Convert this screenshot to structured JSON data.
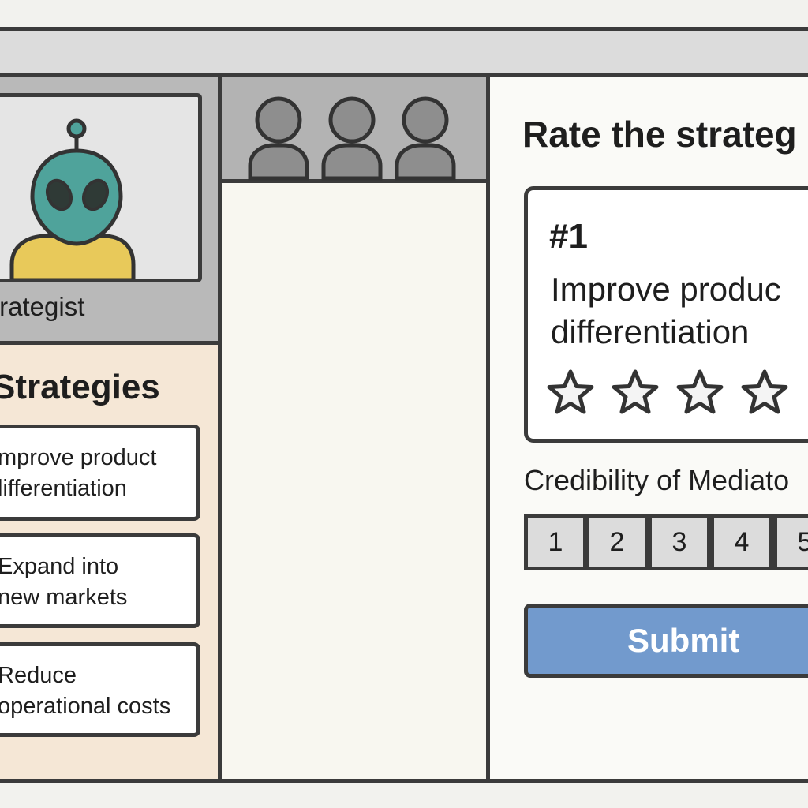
{
  "speaker": {
    "name": "trategist",
    "avatar": "alien-avatar"
  },
  "strategies_panel": {
    "title": "Strategies",
    "items": [
      {
        "line1": "mprove product",
        "line2": "lifferentiation"
      },
      {
        "line1": "Expand into",
        "line2": "new markets"
      },
      {
        "line1": "Reduce",
        "line2": "operational costs"
      }
    ]
  },
  "participants": {
    "icons": [
      "person-icon",
      "person-icon",
      "person-icon"
    ]
  },
  "rating_panel": {
    "title": "Rate the strateg",
    "card": {
      "number": "#1",
      "line1": "Improve produc",
      "line2": "differentiation",
      "star_icon": "star-outline-icon",
      "stars_filled": 0
    },
    "credibility": {
      "label": "Credibility of Mediato",
      "options": [
        "1",
        "2",
        "3",
        "4",
        "5"
      ]
    },
    "submit_label": "Submit"
  },
  "colors": {
    "accent_button": "#729acd",
    "avatar_head": "#4fa39b",
    "avatar_body": "#e8c95a",
    "strategies_bg": "#f5e7d6"
  }
}
